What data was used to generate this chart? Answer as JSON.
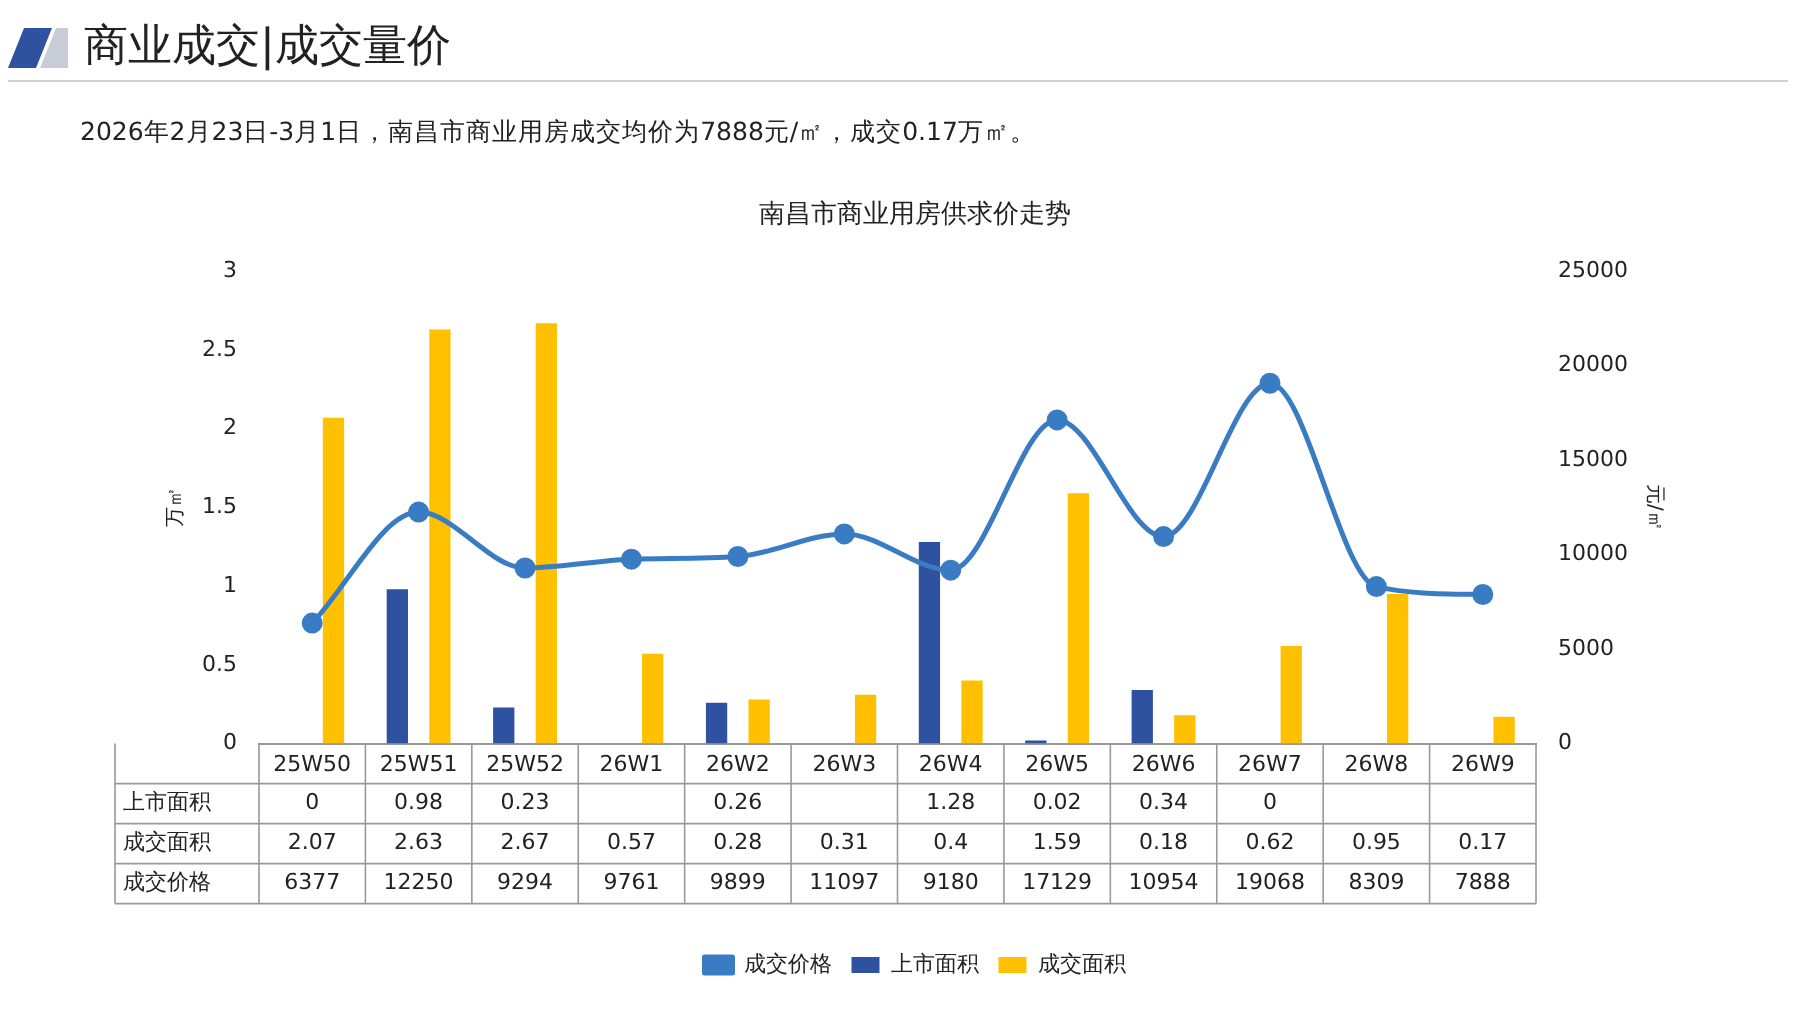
{
  "chart_data": {
    "type": "bar",
    "title": "南昌市商业用房供求价走势",
    "annotations": [
      "商业成交|成交量价",
      "2026年2月23日-3月1日，南昌市商业用房成交均价为7888元/㎡，成交0.17万㎡。"
    ],
    "categories": [
      "25W50",
      "25W51",
      "25W52",
      "26W1",
      "26W2",
      "26W3",
      "26W4",
      "26W5",
      "26W6",
      "26W7",
      "26W8",
      "26W9"
    ],
    "series": [
      {
        "name": "上市面积",
        "color": "#2f52a0",
        "values": [
          0,
          0.98,
          0.23,
          null,
          0.26,
          null,
          1.28,
          0.02,
          0.34,
          0,
          null,
          null
        ]
      },
      {
        "name": "成交面积",
        "color": "#ffc000",
        "values": [
          2.07,
          2.63,
          2.67,
          0.57,
          0.28,
          0.31,
          0.4,
          1.59,
          0.18,
          0.62,
          0.95,
          0.17
        ]
      },
      {
        "name": "成交价格",
        "type": "line",
        "axis": "y2",
        "color": "#3a7cc3",
        "values": [
          6377,
          12250,
          9294,
          9761,
          9899,
          11097,
          9180,
          17129,
          10954,
          19068,
          8309,
          7888
        ]
      }
    ],
    "ylabel": "万㎡",
    "y2label": "元/㎡",
    "ylim": [
      0,
      3
    ],
    "yticks": [
      0,
      0.5,
      1,
      1.5,
      2,
      2.5,
      3
    ],
    "y2lim": [
      0,
      25000
    ],
    "y2ticks": [
      0,
      5000,
      10000,
      15000,
      20000,
      25000
    ],
    "grid": false,
    "legend": "bottom",
    "marker": "circle",
    "data_labels": true
  }
}
